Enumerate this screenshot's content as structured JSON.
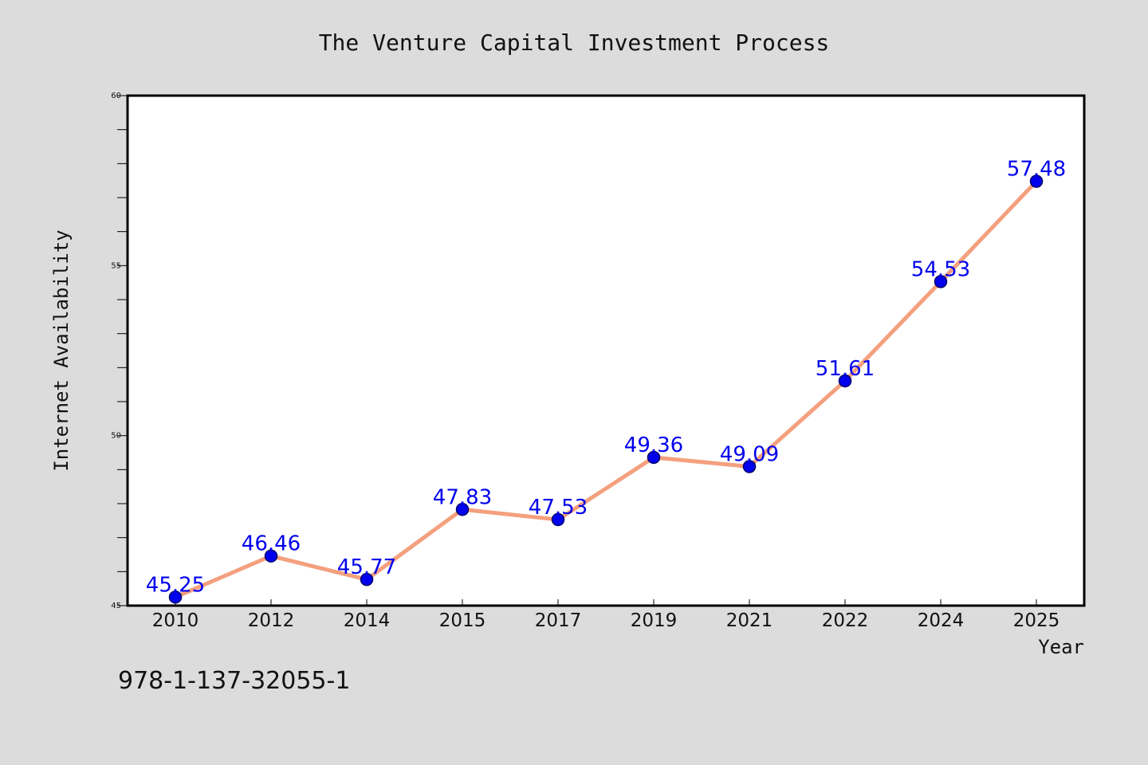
{
  "chart_data": {
    "type": "line",
    "title": "The Venture Capital Investment Process",
    "xlabel": "Year",
    "ylabel": "Internet Availability",
    "categories": [
      "2010",
      "2012",
      "2014",
      "2015",
      "2017",
      "2019",
      "2021",
      "2022",
      "2024",
      "2025"
    ],
    "series": [
      {
        "values": [
          45.25,
          46.46,
          45.77,
          47.83,
          47.53,
          49.36,
          49.09,
          51.61,
          54.53,
          57.48
        ]
      }
    ],
    "data_labels": [
      "45.25",
      "46.46",
      "45.77",
      "47.83",
      "47.53",
      "49.36",
      "49.09",
      "51.61",
      "54.53",
      "57.48"
    ],
    "ylim": [
      45,
      60
    ],
    "yticks": [
      45,
      50,
      55,
      60
    ],
    "grid": false,
    "legend": "none",
    "colors": {
      "line": "#f4a07e",
      "marker": "#0000ee",
      "marker_edge": "#00006a",
      "label": "#0000ee",
      "background": "#dcdcdc",
      "plot_background": "#ffffff"
    }
  },
  "footer": {
    "isbn": "978-1-137-32055-1"
  }
}
